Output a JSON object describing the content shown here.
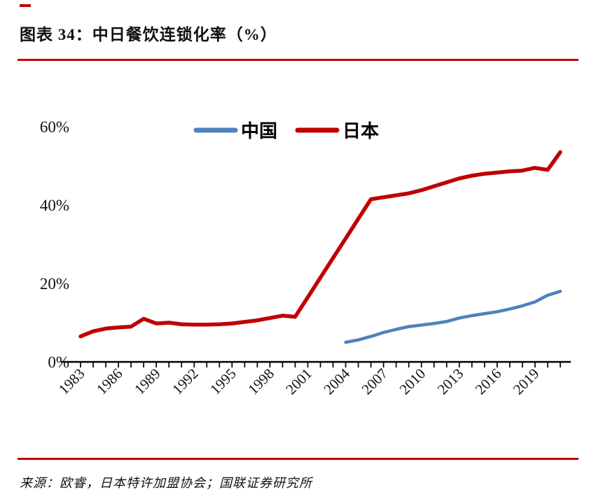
{
  "page": {
    "title": "图表 34：中日餐饮连锁化率（%）",
    "source": "来源：欧睿，日本特许加盟协会；国联证券研究所",
    "accent_color": "#c00000"
  },
  "chart_data": {
    "type": "line",
    "title": "中日餐饮连锁化率（%）",
    "grid": false,
    "legend_position": "top-center-inside",
    "ylim": [
      0,
      60
    ],
    "yticks": [
      "0%",
      "20%",
      "40%",
      "60%"
    ],
    "xticks": [
      1983,
      1986,
      1989,
      1992,
      1995,
      1998,
      2001,
      2004,
      2007,
      2010,
      2013,
      2016,
      2019
    ],
    "x": [
      1983,
      1984,
      1985,
      1986,
      1987,
      1988,
      1989,
      1990,
      1991,
      1992,
      1993,
      1994,
      1995,
      1996,
      1997,
      1998,
      1999,
      2000,
      2001,
      2002,
      2003,
      2004,
      2005,
      2006,
      2007,
      2008,
      2009,
      2010,
      2011,
      2012,
      2013,
      2014,
      2015,
      2016,
      2017,
      2018,
      2019,
      2020,
      2021
    ],
    "series": [
      {
        "id": "china",
        "name": "中国",
        "color": "#4f81bd",
        "width": 4.5,
        "values": [
          null,
          null,
          null,
          null,
          null,
          null,
          null,
          null,
          null,
          null,
          null,
          null,
          null,
          null,
          null,
          null,
          null,
          null,
          null,
          null,
          null,
          5.0,
          5.6,
          6.5,
          7.5,
          8.3,
          9.0,
          9.4,
          9.8,
          10.3,
          11.2,
          11.8,
          12.3,
          12.8,
          13.5,
          14.3,
          15.3,
          17.0,
          18.0
        ]
      },
      {
        "id": "japan",
        "name": "日本",
        "color": "#c00000",
        "width": 5.5,
        "values": [
          6.5,
          7.8,
          8.5,
          8.8,
          9.0,
          11.0,
          9.8,
          10.0,
          9.6,
          9.5,
          9.5,
          9.6,
          9.8,
          10.2,
          10.6,
          11.2,
          11.8,
          11.5,
          16.5,
          21.5,
          26.5,
          31.5,
          36.5,
          41.5,
          42.0,
          42.5,
          43.0,
          43.8,
          44.8,
          45.8,
          46.8,
          47.5,
          48.0,
          48.3,
          48.6,
          48.8,
          49.5,
          49.0,
          53.5
        ]
      }
    ]
  }
}
